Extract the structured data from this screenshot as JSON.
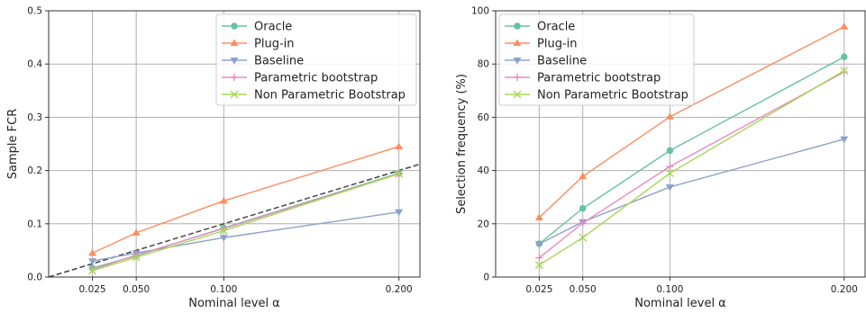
{
  "chart_data": [
    {
      "type": "line",
      "xlabel": "Nominal level α",
      "ylabel": "Sample FCR",
      "x": [
        0.025,
        0.05,
        0.1,
        0.2
      ],
      "x_tick_labels": [
        "0.025",
        "0.050",
        "0.100",
        "0.200"
      ],
      "xlim": [
        0.0,
        0.212
      ],
      "ylim": [
        0.0,
        0.5
      ],
      "y_ticks": [
        0.0,
        0.1,
        0.2,
        0.3,
        0.4,
        0.5
      ],
      "y_tick_labels": [
        "0.0",
        "0.1",
        "0.2",
        "0.3",
        "0.4",
        "0.5"
      ],
      "grid": true,
      "legend": "top-right",
      "reference_line": {
        "type": "diagonal",
        "slope": 1,
        "style": "dashed",
        "color": "#444444"
      },
      "series": [
        {
          "name": "Oracle",
          "color": "#66c2a5",
          "marker": "circle",
          "values": [
            0.017,
            0.04,
            0.092,
            0.195
          ]
        },
        {
          "name": "Plug-in",
          "color": "#fc8d62",
          "marker": "triangle-up",
          "values": [
            0.045,
            0.083,
            0.143,
            0.245
          ]
        },
        {
          "name": "Baseline",
          "color": "#8da0cb",
          "marker": "triangle-down",
          "values": [
            0.03,
            0.045,
            0.074,
            0.122
          ]
        },
        {
          "name": "Parametric bootstrap",
          "color": "#e78ac3",
          "marker": "plus",
          "values": [
            0.014,
            0.041,
            0.091,
            0.194
          ]
        },
        {
          "name": "Non Parametric Bootstrap",
          "color": "#a6d854",
          "marker": "x",
          "values": [
            0.012,
            0.037,
            0.087,
            0.194
          ]
        }
      ]
    },
    {
      "type": "line",
      "xlabel": "Nominal level α",
      "ylabel": "Selection frequency (%)",
      "x": [
        0.025,
        0.05,
        0.1,
        0.2
      ],
      "x_tick_labels": [
        "0.025",
        "0.050",
        "0.100",
        "0.200"
      ],
      "xlim": [
        0.0,
        0.212
      ],
      "ylim": [
        0,
        100
      ],
      "y_ticks": [
        0,
        20,
        40,
        60,
        80,
        100
      ],
      "y_tick_labels": [
        "0",
        "20",
        "40",
        "60",
        "80",
        "100"
      ],
      "grid": true,
      "legend": "top-left",
      "series": [
        {
          "name": "Oracle",
          "color": "#66c2a5",
          "marker": "circle",
          "values": [
            12.5,
            25.8,
            47.5,
            82.7
          ]
        },
        {
          "name": "Plug-in",
          "color": "#fc8d62",
          "marker": "triangle-up",
          "values": [
            22.3,
            37.8,
            60.2,
            94.0
          ]
        },
        {
          "name": "Baseline",
          "color": "#8da0cb",
          "marker": "triangle-down",
          "values": [
            12.4,
            20.7,
            33.8,
            51.8
          ]
        },
        {
          "name": "Parametric bootstrap",
          "color": "#e78ac3",
          "marker": "plus",
          "values": [
            7.2,
            20.3,
            41.5,
            77.0
          ]
        },
        {
          "name": "Non Parametric Bootstrap",
          "color": "#a6d854",
          "marker": "x",
          "values": [
            4.5,
            14.8,
            39.0,
            77.5
          ]
        }
      ]
    }
  ]
}
